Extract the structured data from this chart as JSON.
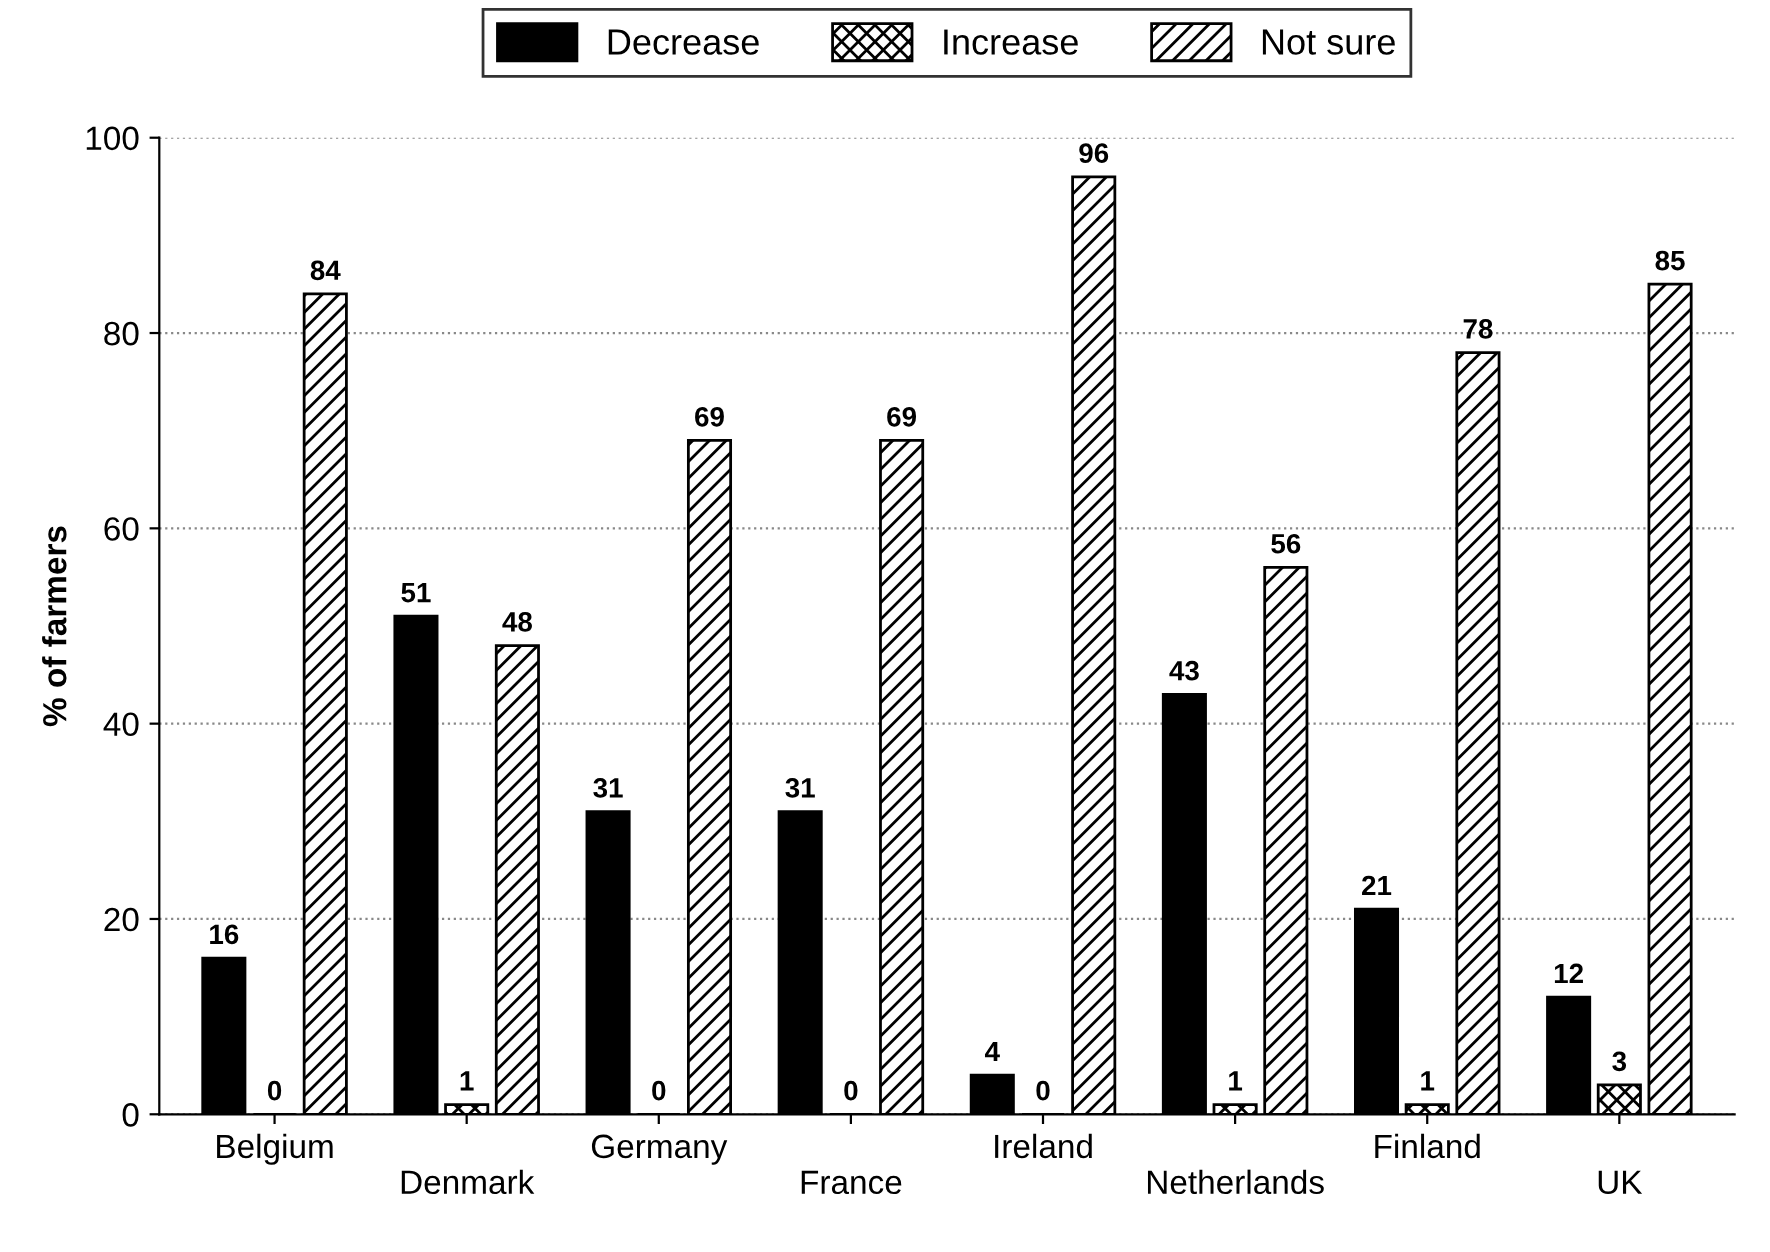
{
  "chart_data": {
    "type": "bar",
    "ylabel": "% of farmers",
    "categories": [
      "Belgium",
      "Denmark",
      "Germany",
      "France",
      "Ireland",
      "Netherlands",
      "Finland",
      "UK"
    ],
    "series": [
      {
        "name": "Decrease",
        "color": "#000000",
        "values": [
          16,
          51,
          31,
          31,
          4,
          43,
          21,
          12
        ]
      },
      {
        "name": "Increase",
        "color": "#000000",
        "values": [
          0,
          1,
          0,
          0,
          0,
          1,
          1,
          3
        ]
      },
      {
        "name": "Not sure",
        "color": "#000000",
        "values": [
          84,
          48,
          69,
          69,
          96,
          56,
          78,
          85
        ]
      }
    ],
    "ylim": [
      0,
      100
    ],
    "yticks": [
      0,
      20,
      40,
      60,
      80,
      100
    ],
    "grid": "y",
    "legend": "top",
    "data_labels": true
  }
}
